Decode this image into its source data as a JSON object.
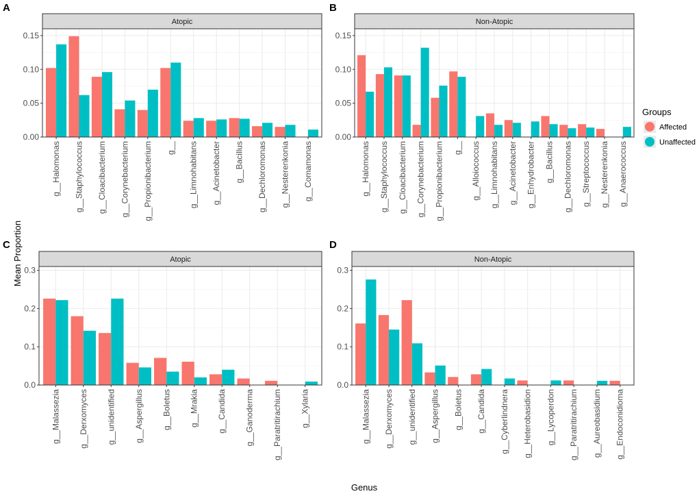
{
  "figure": {
    "xlabel": "Genus",
    "ylabel": "Mean Proportion",
    "legend": {
      "title": "Groups",
      "position": "right",
      "items": [
        {
          "label": "Affected",
          "color": "#F8766D"
        },
        {
          "label": "Unaffected",
          "color": "#00BFC4"
        }
      ]
    }
  },
  "chart_data": [
    {
      "type": "bar",
      "panel": "A",
      "strip": "Atopic",
      "ylim": [
        0,
        0.16
      ],
      "yticks": [
        0.0,
        0.05,
        0.1,
        0.15
      ],
      "ytick_labels": [
        "0.00",
        "0.05",
        "0.10",
        "0.15"
      ],
      "categories": [
        "g__Halomonas",
        "g__Staphylococcus",
        "g__Cloacibacterium",
        "g__Corynebacterium",
        "g__Propionibacterium",
        "g__",
        "g__Limnohabitans",
        "g__Acinetobacter",
        "g__Bacillus",
        "g__Dechloromonas",
        "g__Nesterenkonia",
        "g__Comamonas"
      ],
      "series": [
        {
          "name": "Affected",
          "values": [
            0.102,
            0.149,
            0.089,
            0.041,
            0.04,
            0.102,
            0.024,
            0.024,
            0.028,
            0.016,
            0.015,
            null
          ]
        },
        {
          "name": "Unaffected",
          "values": [
            0.137,
            0.062,
            0.096,
            0.054,
            0.07,
            0.11,
            0.028,
            0.026,
            0.027,
            0.021,
            0.018,
            0.011
          ]
        }
      ]
    },
    {
      "type": "bar",
      "panel": "B",
      "strip": "Non-Atopic",
      "ylim": [
        0,
        0.16
      ],
      "yticks": [
        0.0,
        0.05,
        0.1,
        0.15
      ],
      "ytick_labels": [
        "0.00",
        "0.05",
        "0.10",
        "0.15"
      ],
      "categories": [
        "g__Halomonas",
        "g__Staphylococcus",
        "g__Cloacibacterium",
        "g__Corynebacterium",
        "g__Propionibacterium",
        "g__",
        "g__Alloiococcus",
        "g__Limnohabitans",
        "g__Acinetobacter",
        "g__Enhydrobacter",
        "g__Bacillus",
        "g__Dechloromonas",
        "g__Streptococcus",
        "g__Nesterenkonia",
        "g__Anaerococcus"
      ],
      "series": [
        {
          "name": "Affected",
          "values": [
            0.121,
            0.093,
            0.091,
            0.018,
            0.058,
            0.097,
            null,
            0.035,
            0.025,
            null,
            0.031,
            0.018,
            0.019,
            0.012,
            null
          ]
        },
        {
          "name": "Unaffected",
          "values": [
            0.067,
            0.103,
            0.091,
            0.132,
            0.076,
            0.089,
            0.031,
            0.018,
            0.021,
            0.023,
            0.019,
            0.013,
            0.014,
            null,
            0.015
          ]
        }
      ]
    },
    {
      "type": "bar",
      "panel": "C",
      "strip": "Atopic",
      "ylim": [
        0,
        0.31
      ],
      "yticks": [
        0.0,
        0.1,
        0.2,
        0.3
      ],
      "ytick_labels": [
        "0.0",
        "0.1",
        "0.2",
        "0.3"
      ],
      "categories": [
        "g__Malassezia",
        "g__Derxomyces",
        "g__unidentified",
        "g__Aspergillus",
        "g__Boletus",
        "g__Mrakia",
        "g__Candida",
        "g__Ganoderma",
        "g__Paratritirachium",
        "g__Xylaria"
      ],
      "series": [
        {
          "name": "Affected",
          "values": [
            0.226,
            0.18,
            0.136,
            0.058,
            0.071,
            0.061,
            0.028,
            0.017,
            0.011,
            null
          ]
        },
        {
          "name": "Unaffected",
          "values": [
            0.222,
            0.142,
            0.226,
            0.046,
            0.035,
            0.02,
            0.04,
            null,
            null,
            0.009
          ]
        }
      ]
    },
    {
      "type": "bar",
      "panel": "D",
      "strip": "Non-Atopic",
      "ylim": [
        0,
        0.31
      ],
      "yticks": [
        0.0,
        0.1,
        0.2,
        0.3
      ],
      "ytick_labels": [
        "0.0",
        "0.1",
        "0.2",
        "0.3"
      ],
      "categories": [
        "g__Malassezia",
        "g__Derxomyces",
        "g__unidentified",
        "g__Aspergillus",
        "g__Boletus",
        "g__Candida",
        "g__Cyberlindnera",
        "g__Heterobasidion",
        "g__Lycoperdon",
        "g__Paratritirachium",
        "g__Aureobasidium",
        "g__Endoconidioma"
      ],
      "series": [
        {
          "name": "Affected",
          "values": [
            0.161,
            0.183,
            0.222,
            0.033,
            0.021,
            0.028,
            null,
            0.012,
            null,
            0.012,
            null,
            0.011
          ]
        },
        {
          "name": "Unaffected",
          "values": [
            0.276,
            0.145,
            0.109,
            0.051,
            null,
            0.042,
            0.017,
            null,
            0.012,
            null,
            0.011,
            null
          ]
        }
      ]
    }
  ]
}
